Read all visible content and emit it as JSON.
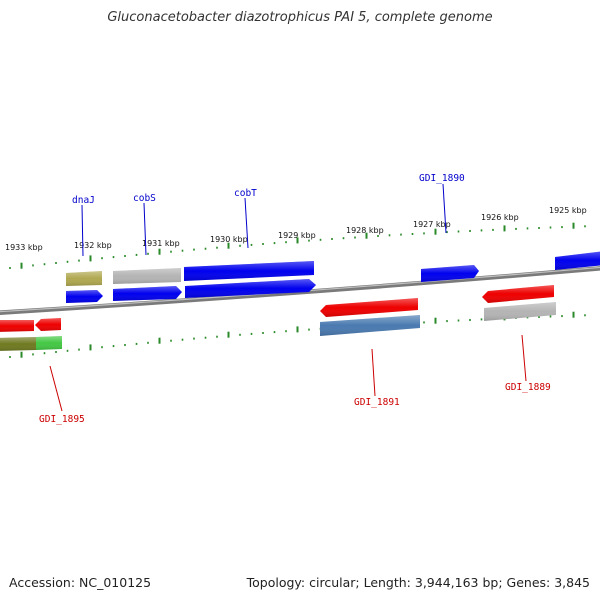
{
  "title": "Gluconacetobacter diazotrophicus PAI 5, complete genome",
  "footer": {
    "accession": "Accession: NC_010125",
    "summary": "Topology: circular; Length: 3,944,163 bp; Genes: 3,845"
  },
  "scale": {
    "ticks": [
      "1933 kbp",
      "1932 kbp",
      "1931 kbp",
      "1930 kbp",
      "1929 kbp",
      "1928 kbp",
      "1927 kbp",
      "1926 kbp",
      "1925 kbp"
    ]
  },
  "labels": {
    "top": [
      "dnaJ",
      "cobS",
      "cobT",
      "GDI_1890"
    ],
    "bottom": [
      "GDI_1895",
      "GDI_1891",
      "GDI_1889"
    ]
  },
  "colors": {
    "forward_label": "#0000cc",
    "reverse_label": "#cc0000",
    "blue_gene": "#0000ee",
    "red_gene": "#ee0000",
    "gray_gene": "#b4b4b4",
    "olive_gene": "#b0a850",
    "steel_gene": "#4a7ab0",
    "green_gene": "#44c844",
    "tick": "#2a8a2a",
    "backbone": "#888888"
  }
}
